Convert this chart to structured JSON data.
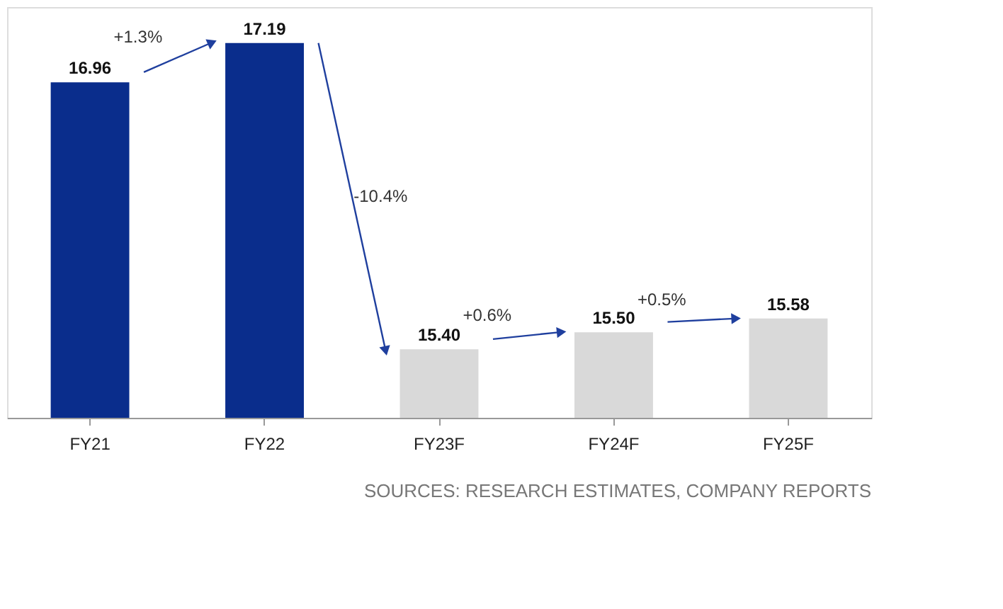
{
  "chart_data": {
    "type": "bar",
    "categories": [
      "FY21",
      "FY22",
      "FY23F",
      "FY24F",
      "FY25F"
    ],
    "values": [
      16.96,
      17.19,
      15.4,
      15.5,
      15.58
    ],
    "colors": [
      "#0a2d8c",
      "#0a2d8c",
      "#d9d9d9",
      "#d9d9d9",
      "#d9d9d9"
    ],
    "value_labels": [
      "16.96",
      "17.19",
      "15.40",
      "15.50",
      "15.58"
    ],
    "ylim": [
      15.0,
      17.4
    ],
    "annotations": [
      "+1.3%",
      "-10.4%",
      "+0.6%",
      "+0.5%",
      "SOURCES: RESEARCH ESTIMATES, COMPANY REPORTS"
    ],
    "grid": false
  }
}
